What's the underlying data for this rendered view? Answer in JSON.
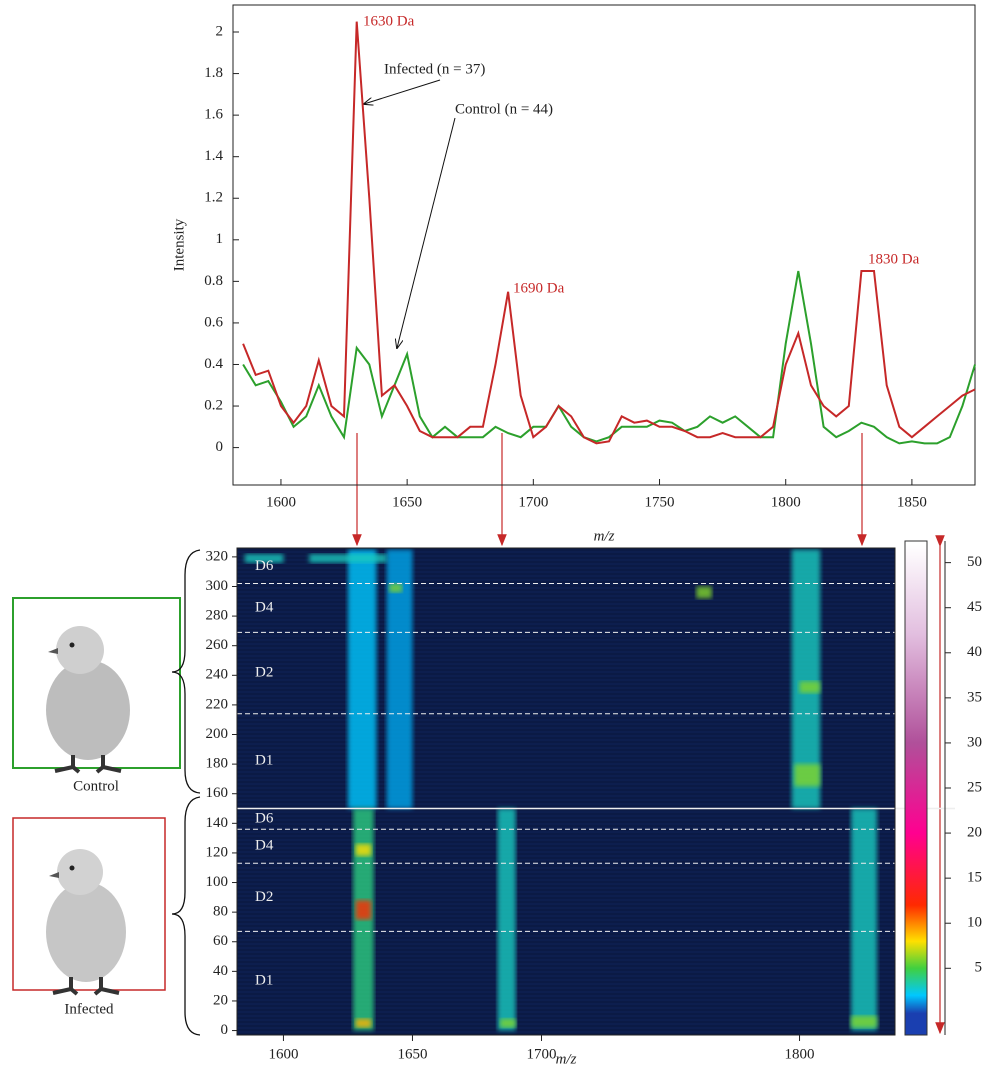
{
  "chart_data": [
    {
      "type": "line",
      "x": [
        1585,
        1590,
        1595,
        1600,
        1605,
        1610,
        1615,
        1620,
        1625,
        1630,
        1635,
        1640,
        1645,
        1650,
        1655,
        1660,
        1665,
        1670,
        1675,
        1680,
        1685,
        1690,
        1695,
        1700,
        1705,
        1710,
        1715,
        1720,
        1725,
        1730,
        1735,
        1740,
        1745,
        1750,
        1755,
        1760,
        1765,
        1770,
        1775,
        1780,
        1785,
        1790,
        1795,
        1800,
        1805,
        1810,
        1815,
        1820,
        1825,
        1830,
        1835,
        1840,
        1845,
        1850,
        1855,
        1860,
        1865,
        1870,
        1875
      ],
      "series": [
        {
          "name": "Control (n = 44)",
          "color": "#2ca02c",
          "values": [
            0.4,
            0.3,
            0.32,
            0.22,
            0.1,
            0.15,
            0.3,
            0.15,
            0.05,
            0.48,
            0.4,
            0.15,
            0.3,
            0.45,
            0.15,
            0.05,
            0.1,
            0.05,
            0.05,
            0.05,
            0.1,
            0.07,
            0.05,
            0.1,
            0.1,
            0.2,
            0.1,
            0.05,
            0.03,
            0.05,
            0.1,
            0.1,
            0.1,
            0.13,
            0.12,
            0.08,
            0.1,
            0.15,
            0.12,
            0.15,
            0.1,
            0.05,
            0.05,
            0.5,
            0.85,
            0.5,
            0.1,
            0.05,
            0.08,
            0.12,
            0.1,
            0.05,
            0.02,
            0.03,
            0.02,
            0.02,
            0.05,
            0.2,
            0.4
          ]
        },
        {
          "name": "Infected (n = 37)",
          "color": "#c62828",
          "values": [
            0.5,
            0.35,
            0.37,
            0.2,
            0.12,
            0.2,
            0.42,
            0.2,
            0.15,
            2.05,
            1.2,
            0.25,
            0.3,
            0.2,
            0.08,
            0.05,
            0.05,
            0.05,
            0.1,
            0.1,
            0.4,
            0.75,
            0.25,
            0.05,
            0.1,
            0.2,
            0.15,
            0.05,
            0.02,
            0.03,
            0.15,
            0.12,
            0.13,
            0.1,
            0.1,
            0.08,
            0.05,
            0.05,
            0.07,
            0.05,
            0.05,
            0.05,
            0.1,
            0.4,
            0.55,
            0.3,
            0.2,
            0.15,
            0.2,
            0.85,
            0.85,
            0.3,
            0.1,
            0.05,
            0.1,
            0.15,
            0.2,
            0.25,
            0.28
          ]
        }
      ],
      "annotations": [
        {
          "text": "1630 Da",
          "color": "#c62828"
        },
        {
          "text": "1690 Da",
          "color": "#c62828"
        },
        {
          "text": "1830 Da",
          "color": "#c62828"
        }
      ],
      "xlabel": "m/z",
      "ylabel": "Intensity",
      "xlim": [
        1581,
        1875
      ],
      "xticks": [
        1600,
        1650,
        1700,
        1750,
        1800,
        1850
      ],
      "ylim": [
        -0.18,
        2.13
      ],
      "yticks": [
        0,
        0.2,
        0.4,
        0.6,
        0.8,
        1,
        1.2,
        1.4,
        1.6,
        1.8,
        2
      ]
    },
    {
      "type": "heatmap",
      "xlabel": "m/z",
      "xlim": [
        1582,
        1837
      ],
      "xticks": [
        1600,
        1650,
        1700,
        1800
      ],
      "ylim": [
        -3,
        326
      ],
      "yticks": [
        0,
        20,
        40,
        60,
        80,
        100,
        120,
        140,
        160,
        180,
        200,
        220,
        240,
        260,
        280,
        300,
        320
      ],
      "groups": [
        {
          "label": "D6",
          "range": [
            302,
            325
          ]
        },
        {
          "label": "D4",
          "range": [
            269,
            302
          ]
        },
        {
          "label": "D2",
          "range": [
            214,
            269
          ]
        },
        {
          "label": "D1",
          "range": [
            150,
            214
          ]
        },
        {
          "label": "D6",
          "range": [
            136,
            150
          ]
        },
        {
          "label": "D4",
          "range": [
            113,
            136
          ]
        },
        {
          "label": "D2",
          "range": [
            67,
            113
          ]
        },
        {
          "label": "D1",
          "range": [
            0,
            67
          ]
        }
      ],
      "separators": [
        {
          "y": 302,
          "style": "dashed"
        },
        {
          "y": 269,
          "style": "dashed"
        },
        {
          "y": 214,
          "style": "dashed"
        },
        {
          "y": 150,
          "style": "solid"
        },
        {
          "y": 136,
          "style": "dashed"
        },
        {
          "y": 113,
          "style": "dashed"
        },
        {
          "y": 67,
          "style": "dashed"
        }
      ],
      "hotspots": [
        {
          "x": [
            1625,
            1636
          ],
          "y": [
            150,
            325
          ],
          "value": 2
        },
        {
          "x": [
            1640,
            1650
          ],
          "y": [
            150,
            325
          ],
          "value": 1.5
        },
        {
          "x": [
            1627,
            1635
          ],
          "y": [
            0,
            150
          ],
          "value": 4
        },
        {
          "x": [
            1628,
            1634
          ],
          "y": [
            75,
            88
          ],
          "value": 12
        },
        {
          "x": [
            1628,
            1634
          ],
          "y": [
            2,
            8
          ],
          "value": 9
        },
        {
          "x": [
            1628,
            1634
          ],
          "y": [
            118,
            126
          ],
          "value": 8
        },
        {
          "x": [
            1683,
            1690
          ],
          "y": [
            0,
            150
          ],
          "value": 3
        },
        {
          "x": [
            1684,
            1690
          ],
          "y": [
            2,
            8
          ],
          "value": 6
        },
        {
          "x": [
            1797,
            1808
          ],
          "y": [
            150,
            325
          ],
          "value": 3
        },
        {
          "x": [
            1798,
            1808
          ],
          "y": [
            165,
            180
          ],
          "value": 6
        },
        {
          "x": [
            1800,
            1808
          ],
          "y": [
            228,
            236
          ],
          "value": 6
        },
        {
          "x": [
            1820,
            1830
          ],
          "y": [
            0,
            150
          ],
          "value": 3
        },
        {
          "x": [
            1820,
            1830
          ],
          "y": [
            2,
            10
          ],
          "value": 6
        },
        {
          "x": [
            1641,
            1646
          ],
          "y": [
            296,
            302
          ],
          "value": 6
        },
        {
          "x": [
            1760,
            1766
          ],
          "y": [
            292,
            300
          ],
          "value": 6
        },
        {
          "x": [
            1585,
            1600
          ],
          "y": [
            316,
            322
          ],
          "value": 3
        },
        {
          "x": [
            1610,
            1640
          ],
          "y": [
            316,
            322
          ],
          "value": 3
        }
      ],
      "colorbar": {
        "lim": [
          -2.4,
          52.4
        ],
        "ticks": [
          5,
          10,
          15,
          20,
          25,
          30,
          35,
          40,
          45,
          50
        ],
        "scale": [
          [
            0,
            "#1a3fb0"
          ],
          [
            2,
            "#00c8ff"
          ],
          [
            5,
            "#40d040"
          ],
          [
            8,
            "#ffe000"
          ],
          [
            12,
            "#ff2a00"
          ],
          [
            20,
            "#ff0090"
          ],
          [
            30,
            "#b0509a"
          ],
          [
            42,
            "#e2bedf"
          ],
          [
            52,
            "#ffffff"
          ]
        ]
      }
    }
  ],
  "panels": [
    {
      "label": "Control"
    },
    {
      "label": "Infected"
    }
  ]
}
